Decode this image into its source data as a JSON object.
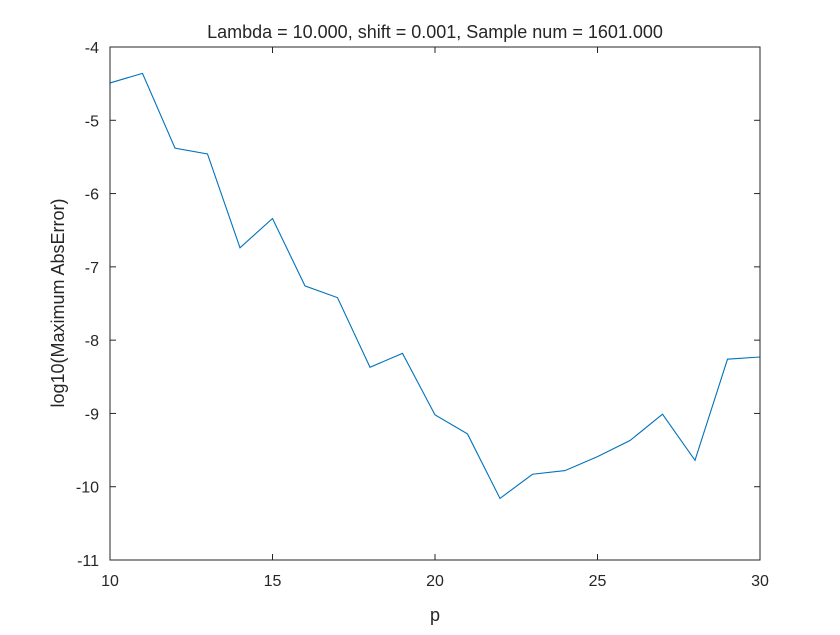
{
  "chart_data": {
    "type": "line",
    "title": "Lambda = 10.000, shift = 0.001, Sample num = 1601.000",
    "xlabel": "p",
    "ylabel": "log10(Maximum AbsError)",
    "xlim": [
      10,
      30
    ],
    "ylim": [
      -11,
      -4
    ],
    "xticks": [
      10,
      15,
      20,
      25,
      30
    ],
    "yticks": [
      -4,
      -5,
      -6,
      -7,
      -8,
      -9,
      -10,
      -11
    ],
    "grid": false,
    "legend": "none",
    "series": [
      {
        "color": "#0072bd",
        "x": [
          10,
          11,
          12,
          13,
          14,
          15,
          16,
          17,
          18,
          19,
          20,
          21,
          22,
          23,
          24,
          25,
          26,
          27,
          28,
          29,
          30
        ],
        "y": [
          -4.49,
          -4.36,
          -5.38,
          -5.46,
          -6.74,
          -6.34,
          -7.26,
          -7.42,
          -8.37,
          -8.18,
          -9.02,
          -9.28,
          -10.16,
          -9.83,
          -9.78,
          -9.59,
          -9.37,
          -9.01,
          -9.64,
          -8.26,
          -8.23
        ]
      }
    ]
  }
}
